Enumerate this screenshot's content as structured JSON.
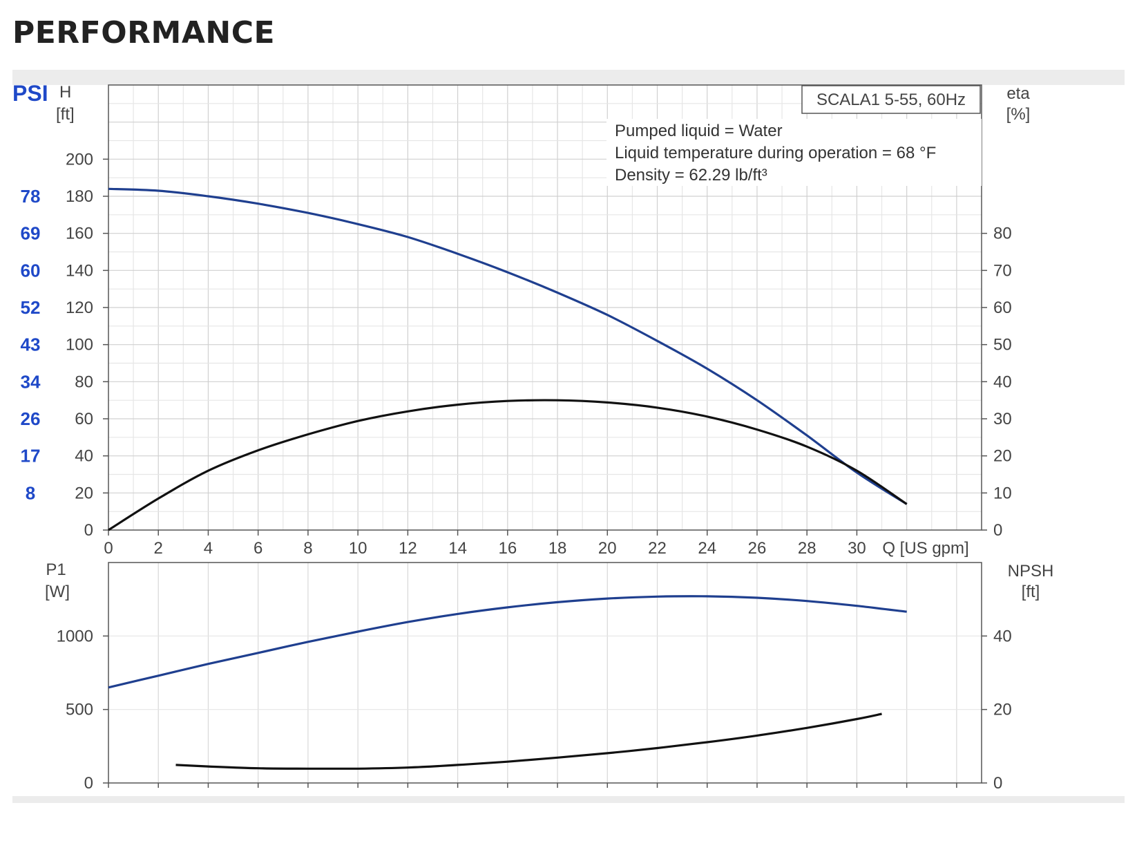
{
  "page": {
    "title": "PERFORMANCE"
  },
  "chart_data": [
    {
      "type": "line",
      "title": "SCALA1 5-55, 60Hz",
      "annotations": [
        "Pumped liquid = Water",
        "Liquid temperature during operation = 68 °F",
        "Density = 62.29 lb/ft³"
      ],
      "xlabel": "Q [US gpm]",
      "xlim": [
        0,
        35
      ],
      "xticks": [
        0,
        2,
        4,
        6,
        8,
        10,
        12,
        14,
        16,
        18,
        20,
        22,
        24,
        26,
        28,
        30
      ],
      "y_left": {
        "label": "H",
        "unit": "[ft]",
        "lim": [
          0,
          240
        ],
        "ticks": [
          0,
          20,
          40,
          60,
          80,
          100,
          120,
          140,
          160,
          180,
          200
        ]
      },
      "y_left_alt": {
        "label": "PSI",
        "ticks": [
          {
            "label": "78",
            "at_ft": 180
          },
          {
            "label": "69",
            "at_ft": 160
          },
          {
            "label": "60",
            "at_ft": 140
          },
          {
            "label": "52",
            "at_ft": 120
          },
          {
            "label": "43",
            "at_ft": 100
          },
          {
            "label": "34",
            "at_ft": 80
          },
          {
            "label": "26",
            "at_ft": 60
          },
          {
            "label": "17",
            "at_ft": 40
          },
          {
            "label": "8",
            "at_ft": 20
          }
        ]
      },
      "y_right": {
        "label": "eta",
        "unit": "[%]",
        "lim": [
          0,
          120
        ],
        "ticks": [
          0,
          10,
          20,
          30,
          40,
          50,
          60,
          70,
          80
        ]
      },
      "grid": true,
      "series": [
        {
          "axis": "left",
          "color": "#1f3f8f",
          "points": [
            [
              0,
              184
            ],
            [
              2,
              183
            ],
            [
              4,
              180
            ],
            [
              6,
              176
            ],
            [
              8,
              171
            ],
            [
              10,
              165
            ],
            [
              12,
              158
            ],
            [
              14,
              149
            ],
            [
              16,
              139
            ],
            [
              18,
              128
            ],
            [
              20,
              116
            ],
            [
              22,
              102
            ],
            [
              24,
              87
            ],
            [
              26,
              70
            ],
            [
              28,
              51
            ],
            [
              30,
              31
            ],
            [
              32,
              14
            ]
          ]
        },
        {
          "axis": "right",
          "color": "#111111",
          "points": [
            [
              0,
              0
            ],
            [
              2,
              8.5
            ],
            [
              4,
              16
            ],
            [
              6,
              21.5
            ],
            [
              8,
              25.8
            ],
            [
              10,
              29.4
            ],
            [
              12,
              32
            ],
            [
              14,
              33.8
            ],
            [
              16,
              34.8
            ],
            [
              18,
              35
            ],
            [
              20,
              34.4
            ],
            [
              22,
              33
            ],
            [
              24,
              30.6
            ],
            [
              26,
              27.1
            ],
            [
              28,
              22.5
            ],
            [
              30,
              16
            ],
            [
              32,
              7
            ]
          ]
        }
      ]
    },
    {
      "type": "line",
      "xlabel": "",
      "xlim": [
        0,
        35
      ],
      "y_left": {
        "label": "P1",
        "unit": "[W]",
        "lim": [
          0,
          1500
        ],
        "ticks": [
          0,
          500,
          1000
        ]
      },
      "y_right": {
        "label": "NPSH",
        "unit": "[ft]",
        "lim": [
          0,
          60
        ],
        "ticks": [
          0,
          20,
          40
        ]
      },
      "grid": true,
      "series": [
        {
          "axis": "left",
          "color": "#1f3f8f",
          "points": [
            [
              0,
              650
            ],
            [
              2,
              730
            ],
            [
              4,
              810
            ],
            [
              6,
              885
            ],
            [
              8,
              960
            ],
            [
              10,
              1030
            ],
            [
              12,
              1095
            ],
            [
              14,
              1150
            ],
            [
              16,
              1195
            ],
            [
              18,
              1230
            ],
            [
              20,
              1255
            ],
            [
              22,
              1268
            ],
            [
              24,
              1270
            ],
            [
              26,
              1260
            ],
            [
              28,
              1238
            ],
            [
              30,
              1205
            ],
            [
              32,
              1165
            ]
          ]
        },
        {
          "axis": "right",
          "color": "#111111",
          "points": [
            [
              2.7,
              4.9
            ],
            [
              4,
              4.5
            ],
            [
              6,
              4
            ],
            [
              8,
              3.9
            ],
            [
              10,
              3.9
            ],
            [
              12,
              4.2
            ],
            [
              14,
              4.9
            ],
            [
              16,
              5.8
            ],
            [
              18,
              6.9
            ],
            [
              20,
              8.1
            ],
            [
              22,
              9.5
            ],
            [
              24,
              11.1
            ],
            [
              26,
              12.9
            ],
            [
              28,
              15
            ],
            [
              30,
              17.4
            ],
            [
              31,
              18.8
            ]
          ]
        }
      ]
    }
  ]
}
